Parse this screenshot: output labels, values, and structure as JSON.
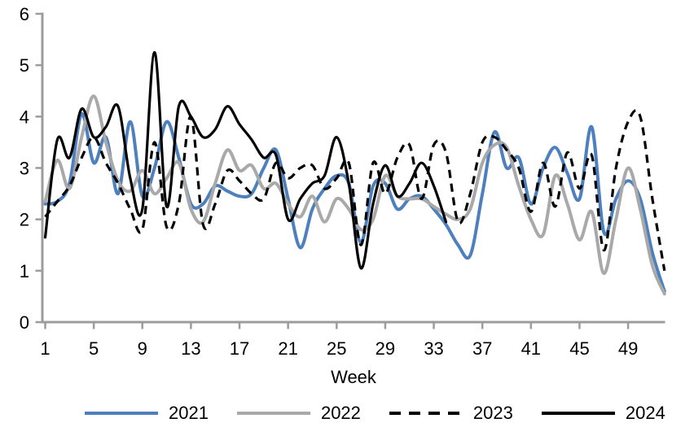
{
  "chart_data": {
    "type": "line",
    "title": "",
    "xlabel": "Week",
    "ylabel": "",
    "xlim": [
      1,
      52
    ],
    "ylim": [
      0,
      6
    ],
    "x_ticks": [
      1,
      5,
      9,
      13,
      17,
      21,
      25,
      29,
      33,
      37,
      41,
      45,
      49
    ],
    "y_ticks": [
      0,
      1,
      2,
      3,
      4,
      5,
      6
    ],
    "grid": false,
    "legend_position": "bottom",
    "axis_color": "#9C9C9C",
    "text_color": "#000000",
    "weeks": [
      1,
      2,
      3,
      4,
      5,
      6,
      7,
      8,
      9,
      10,
      11,
      12,
      13,
      14,
      15,
      16,
      17,
      18,
      19,
      20,
      21,
      22,
      23,
      24,
      25,
      26,
      27,
      28,
      29,
      30,
      31,
      32,
      33,
      34,
      35,
      36,
      37,
      38,
      39,
      40,
      41,
      42,
      43,
      44,
      45,
      46,
      47,
      48,
      49,
      50,
      51,
      52
    ],
    "series": [
      {
        "name": "2021",
        "color": "#4E80BD",
        "line_style": "solid",
        "line_width": 4,
        "values": [
          2.3,
          2.35,
          2.7,
          4.05,
          3.1,
          3.6,
          2.5,
          3.9,
          2.45,
          3.0,
          3.9,
          3.2,
          2.3,
          2.3,
          2.65,
          2.55,
          2.45,
          2.5,
          3.0,
          3.35,
          2.4,
          1.45,
          2.2,
          2.6,
          2.85,
          2.7,
          1.55,
          2.65,
          2.7,
          2.2,
          2.4,
          2.45,
          2.2,
          1.9,
          1.5,
          1.3,
          2.5,
          3.7,
          3.0,
          3.2,
          2.3,
          3.0,
          3.4,
          2.9,
          2.4,
          3.8,
          1.75,
          2.4,
          2.75,
          2.4,
          1.35,
          0.6
        ]
      },
      {
        "name": "2022",
        "color": "#A9A9A9",
        "line_style": "solid",
        "line_width": 4,
        "values": [
          2.35,
          3.15,
          2.6,
          3.6,
          4.4,
          3.5,
          2.75,
          2.55,
          2.95,
          2.5,
          2.8,
          3.1,
          2.2,
          1.95,
          2.7,
          3.35,
          2.95,
          3.05,
          2.6,
          2.7,
          2.3,
          2.05,
          2.45,
          1.95,
          2.4,
          2.2,
          1.8,
          2.0,
          2.85,
          2.45,
          2.4,
          2.4,
          2.25,
          2.1,
          2.0,
          2.2,
          3.1,
          3.45,
          3.4,
          2.65,
          2.0,
          1.7,
          2.85,
          2.3,
          1.6,
          2.15,
          0.95,
          2.0,
          3.0,
          2.2,
          1.1,
          0.55
        ]
      },
      {
        "name": "2023",
        "color": "#000000",
        "line_style": "dashed",
        "line_width": 3.2,
        "values": [
          2.05,
          2.35,
          2.65,
          3.2,
          3.6,
          3.1,
          2.7,
          2.2,
          1.8,
          3.5,
          1.85,
          2.3,
          4.0,
          1.9,
          2.3,
          2.95,
          2.75,
          2.5,
          2.4,
          3.1,
          2.8,
          3.0,
          3.05,
          2.6,
          2.8,
          3.1,
          1.5,
          3.1,
          2.5,
          3.2,
          3.45,
          2.4,
          3.45,
          3.3,
          1.95,
          2.5,
          3.5,
          3.6,
          3.35,
          3.0,
          2.15,
          3.1,
          2.25,
          3.3,
          2.6,
          3.25,
          1.4,
          3.0,
          3.9,
          4.0,
          2.4,
          1.0
        ]
      },
      {
        "name": "2024",
        "color": "#000000",
        "line_style": "solid",
        "line_width": 3.2,
        "values": [
          1.65,
          3.55,
          3.2,
          4.15,
          3.6,
          3.8,
          4.2,
          2.8,
          2.2,
          5.25,
          2.25,
          4.2,
          4.0,
          3.6,
          3.75,
          4.2,
          3.85,
          3.55,
          3.2,
          3.25,
          2.0,
          2.4,
          2.7,
          2.85,
          3.6,
          2.7,
          1.05,
          2.3,
          3.05,
          2.45,
          2.7,
          3.1,
          2.65,
          1.95
        ]
      }
    ]
  }
}
